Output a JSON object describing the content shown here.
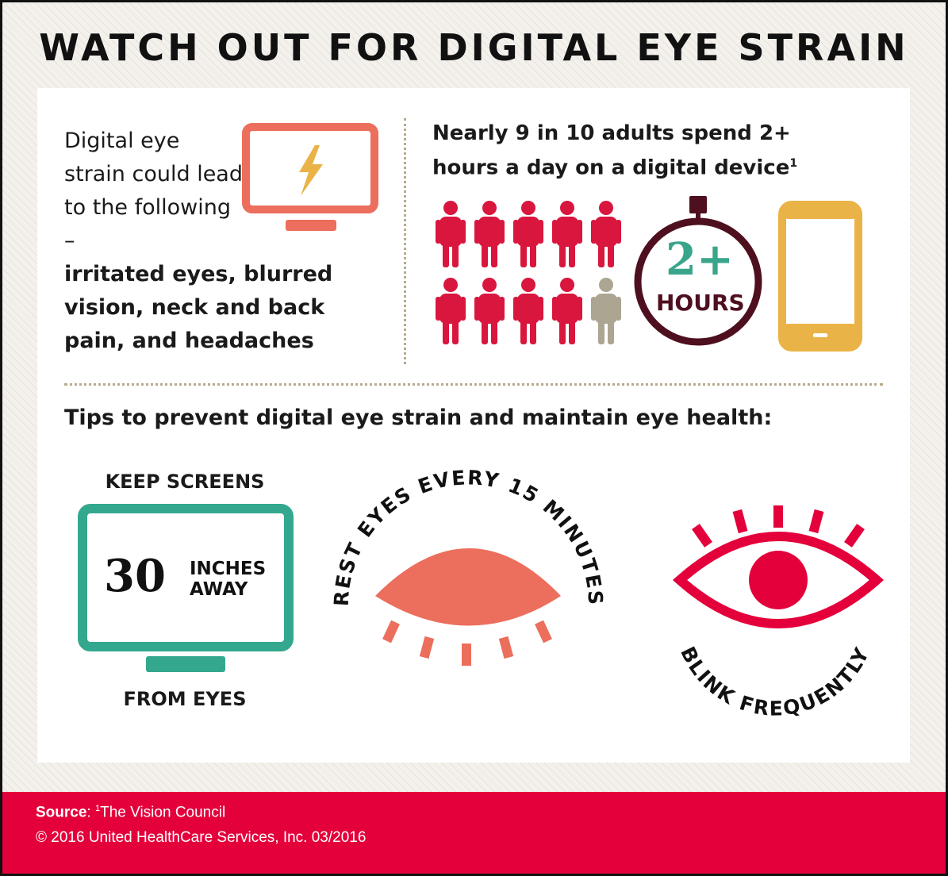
{
  "title": "WATCH OUT FOR DIGITAL EYE STRAIN",
  "intro": {
    "plain": "Digital eye strain could lead to the following –",
    "bold": "irritated eyes, blurred vision, neck and back pain, and headaches"
  },
  "stat": {
    "text": "Nearly 9 in 10 adults spend 2+ hours a day on a digital device",
    "footnote": "1",
    "people_highlighted": 9,
    "people_total": 10,
    "clock_big": "2+",
    "clock_small": "HOURS"
  },
  "tips": {
    "heading": "Tips to prevent digital eye strain and maintain eye health:",
    "screens": {
      "top": "KEEP SCREENS",
      "number": "30",
      "unit_line1": "INCHES",
      "unit_line2": "AWAY",
      "bottom": "FROM EYES"
    },
    "rest": "REST EYES EVERY 15 MINUTES",
    "blink": "BLINK FREQUENTLY"
  },
  "footer": {
    "source_label": "Source",
    "source_sep": ": ",
    "source_sup": "1",
    "source_text": "The Vision Council",
    "copyright": "© 2016 United HealthCare Services, Inc. 03/2016"
  },
  "colors": {
    "red": "#e4003b",
    "person_red": "#d9163e",
    "person_grey": "#aba592",
    "salmon": "#ec6e5c",
    "teal": "#33a88f",
    "gold": "#eab347",
    "maroon": "#4e0f1e",
    "clock_green": "#3aa58b"
  },
  "icons": [
    "monitor-icon",
    "lightning-icon",
    "person-icon",
    "stopwatch-icon",
    "phone-icon",
    "closed-eye-icon",
    "open-eye-icon"
  ]
}
